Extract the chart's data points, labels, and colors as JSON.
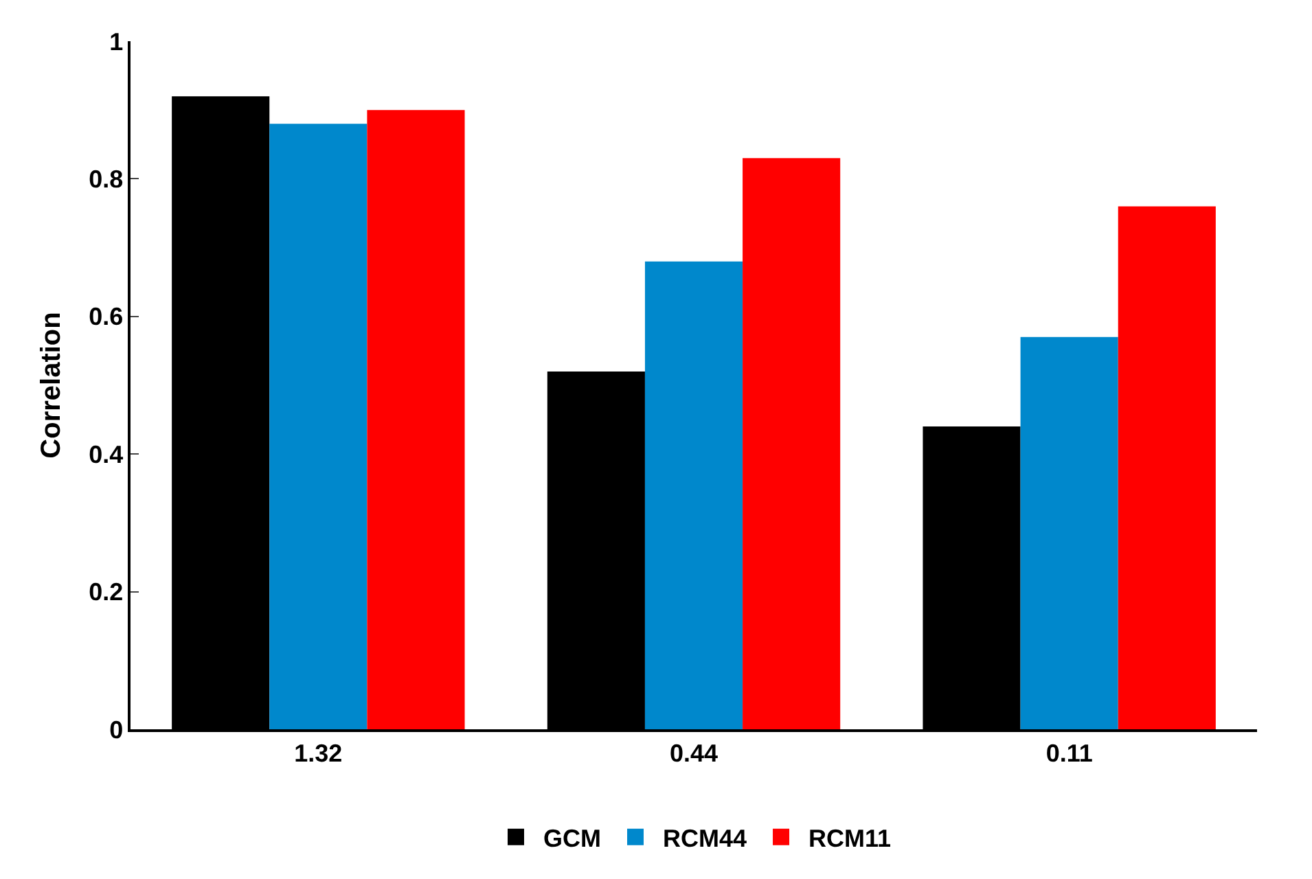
{
  "chart_data": {
    "type": "bar",
    "ylabel": "Correlation",
    "categories": [
      "1.32",
      "0.44",
      "0.11"
    ],
    "series": [
      {
        "name": "GCM",
        "color": "#000000",
        "values": [
          0.92,
          0.52,
          0.44
        ]
      },
      {
        "name": "RCM44",
        "color": "#0088cc",
        "values": [
          0.88,
          0.68,
          0.57
        ]
      },
      {
        "name": "RCM11",
        "color": "#ff0000",
        "values": [
          0.9,
          0.83,
          0.76
        ]
      }
    ],
    "ylim": [
      0,
      1
    ],
    "yticks": [
      0,
      0.2,
      0.4,
      0.6,
      0.8,
      1
    ],
    "legend": "bottom"
  }
}
